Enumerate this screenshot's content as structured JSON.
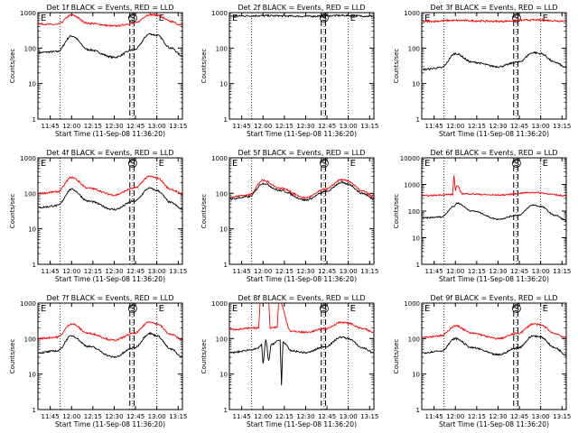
{
  "figure": {
    "xlabel": "Start Time (11-Sep-08 11:36:20)",
    "ylabel": "Counts/sec"
  },
  "chart_data": [
    {
      "type": "line",
      "title": "Det 1f BLACK = Events, RED = LLD",
      "y_log_range": [
        1,
        1000
      ],
      "yticks": [
        "1",
        "10",
        "100",
        "1000"
      ],
      "xticks": [
        "11:45",
        "12:00",
        "12:15",
        "12:30",
        "12:45",
        "13:00",
        "13:15"
      ],
      "time_range": [
        "11:36:20",
        "13:18:00"
      ],
      "markers": [
        {
          "label": "E",
          "time": "11:37"
        },
        {
          "label": "S",
          "time": "12:43"
        },
        {
          "label": "E",
          "time": "13:00"
        }
      ],
      "dotted_lines": [
        "11:52",
        "12:43",
        "13:00"
      ],
      "dashed_lines": [
        "12:41",
        "12:44"
      ],
      "series": [
        {
          "name": "Events",
          "color": "#000000",
          "x": [
            "11:37",
            "11:50",
            "12:00",
            "12:12",
            "12:30",
            "12:44",
            "12:55",
            "13:00",
            "13:10",
            "13:18"
          ],
          "y": [
            75,
            80,
            220,
            90,
            55,
            90,
            250,
            230,
            100,
            60
          ]
        },
        {
          "name": "LLD",
          "color": "#ff0000",
          "x": [
            "11:37",
            "11:50",
            "12:00",
            "12:12",
            "12:30",
            "12:44",
            "12:55",
            "13:00",
            "13:10",
            "13:18"
          ],
          "y": [
            480,
            460,
            850,
            500,
            420,
            500,
            880,
            850,
            560,
            430
          ]
        }
      ]
    },
    {
      "type": "line",
      "title": "Det 2f BLACK = Events, RED = LLD",
      "y_log_range": [
        1,
        1000
      ],
      "yticks": [
        "1",
        "10",
        "100",
        "1000"
      ],
      "xticks": [
        "11:45",
        "12:00",
        "12:15",
        "12:30",
        "12:45",
        "13:00",
        "13:15"
      ],
      "time_range": [
        "11:36:20",
        "13:18:00"
      ],
      "markers": [
        {
          "label": "E",
          "time": "11:37"
        },
        {
          "label": "S",
          "time": "12:43"
        },
        {
          "label": "E",
          "time": "13:00"
        }
      ],
      "dotted_lines": [
        "11:52",
        "12:43",
        "13:00"
      ],
      "dashed_lines": [
        "12:41",
        "12:44"
      ],
      "series": [
        {
          "name": "Events",
          "color": "#000000",
          "x": [
            "11:37",
            "12:00",
            "12:30",
            "12:55",
            "13:18"
          ],
          "y": [
            800,
            820,
            790,
            830,
            790
          ]
        },
        {
          "name": "LLD",
          "color": "#ff0000",
          "x": [
            "11:37",
            "12:00",
            "12:30",
            "12:55",
            "13:18"
          ],
          "y": [
            1050,
            1150,
            1080,
            1200,
            1080
          ]
        }
      ]
    },
    {
      "type": "line",
      "title": "Det 3f BLACK = Events, RED = LLD",
      "y_log_range": [
        1,
        1000
      ],
      "yticks": [
        "1",
        "10",
        "100",
        "1000"
      ],
      "xticks": [
        "11:45",
        "12:00",
        "12:15",
        "12:30",
        "12:45",
        "13:00",
        "13:15"
      ],
      "time_range": [
        "11:36:20",
        "13:18:00"
      ],
      "markers": [
        {
          "label": "E",
          "time": "11:37"
        },
        {
          "label": "S",
          "time": "12:43"
        },
        {
          "label": "E",
          "time": "13:00"
        }
      ],
      "dotted_lines": [
        "11:52",
        "12:43",
        "13:00"
      ],
      "dashed_lines": [
        "12:41",
        "12:44"
      ],
      "series": [
        {
          "name": "Events",
          "color": "#000000",
          "x": [
            "11:37",
            "11:50",
            "12:00",
            "12:12",
            "12:30",
            "12:44",
            "12:55",
            "13:00",
            "13:10",
            "13:18"
          ],
          "y": [
            25,
            28,
            70,
            40,
            30,
            40,
            75,
            70,
            40,
            28
          ]
        },
        {
          "name": "LLD",
          "color": "#ff0000",
          "x": [
            "11:37",
            "12:00",
            "12:30",
            "12:55",
            "13:18"
          ],
          "y": [
            560,
            600,
            570,
            620,
            580
          ]
        }
      ]
    },
    {
      "type": "line",
      "title": "Det 4f BLACK = Events, RED = LLD",
      "y_log_range": [
        1,
        1000
      ],
      "yticks": [
        "1",
        "10",
        "100",
        "1000"
      ],
      "xticks": [
        "11:45",
        "12:00",
        "12:15",
        "12:30",
        "12:45",
        "13:00",
        "13:15"
      ],
      "time_range": [
        "11:36:20",
        "13:18:00"
      ],
      "markers": [
        {
          "label": "E",
          "time": "11:37"
        },
        {
          "label": "S",
          "time": "12:43"
        },
        {
          "label": "E",
          "time": "13:00"
        }
      ],
      "dotted_lines": [
        "11:52",
        "12:43",
        "13:00"
      ],
      "dashed_lines": [
        "12:41",
        "12:44"
      ],
      "series": [
        {
          "name": "Events",
          "color": "#000000",
          "x": [
            "11:37",
            "11:50",
            "12:00",
            "12:12",
            "12:30",
            "12:44",
            "12:55",
            "13:00",
            "13:10",
            "13:18"
          ],
          "y": [
            40,
            45,
            130,
            60,
            35,
            60,
            140,
            120,
            55,
            35
          ]
        },
        {
          "name": "LLD",
          "color": "#ff0000",
          "x": [
            "11:37",
            "11:50",
            "12:00",
            "12:12",
            "12:30",
            "12:44",
            "12:55",
            "13:00",
            "13:10",
            "13:18"
          ],
          "y": [
            100,
            110,
            280,
            140,
            90,
            140,
            300,
            270,
            130,
            95
          ]
        }
      ]
    },
    {
      "type": "line",
      "title": "Det 5f BLACK = Events, RED = LLD",
      "y_log_range": [
        1,
        1000
      ],
      "yticks": [
        "1",
        "10",
        "100",
        "1000"
      ],
      "xticks": [
        "11:45",
        "12:00",
        "12:15",
        "12:30",
        "12:45",
        "13:00",
        "13:15"
      ],
      "time_range": [
        "11:36:20",
        "13:18:00"
      ],
      "markers": [
        {
          "label": "E",
          "time": "11:37"
        },
        {
          "label": "S",
          "time": "12:43"
        },
        {
          "label": "E",
          "time": "13:00"
        }
      ],
      "dotted_lines": [
        "11:52",
        "12:43",
        "13:00"
      ],
      "dashed_lines": [
        "12:41",
        "12:44"
      ],
      "series": [
        {
          "name": "Events",
          "color": "#000000",
          "x": [
            "11:37",
            "11:50",
            "12:00",
            "12:12",
            "12:30",
            "12:44",
            "12:55",
            "13:00",
            "13:10",
            "13:18"
          ],
          "y": [
            70,
            80,
            190,
            120,
            65,
            110,
            200,
            180,
            100,
            70
          ]
        },
        {
          "name": "LLD",
          "color": "#ff0000",
          "x": [
            "11:37",
            "11:50",
            "12:00",
            "12:12",
            "12:30",
            "12:44",
            "12:55",
            "13:00",
            "13:10",
            "13:18"
          ],
          "y": [
            80,
            90,
            230,
            140,
            75,
            130,
            240,
            220,
            115,
            80
          ]
        }
      ]
    },
    {
      "type": "line",
      "title": "Det 6f BLACK = Events, RED = LLD",
      "y_log_range": [
        1,
        10000
      ],
      "yticks": [
        "1",
        "10",
        "100",
        "1000",
        "10000"
      ],
      "xticks": [
        "11:45",
        "12:00",
        "12:15",
        "12:30",
        "12:45",
        "13:00",
        "13:15"
      ],
      "time_range": [
        "11:36:20",
        "13:18:00"
      ],
      "markers": [
        {
          "label": "E",
          "time": "11:37"
        },
        {
          "label": "S",
          "time": "12:43"
        },
        {
          "label": "E",
          "time": "13:00"
        }
      ],
      "dotted_lines": [
        "11:52",
        "12:43",
        "13:00"
      ],
      "dashed_lines": [
        "12:41",
        "12:44"
      ],
      "series": [
        {
          "name": "Events",
          "color": "#000000",
          "x": [
            "11:37",
            "11:50",
            "11:59",
            "12:01",
            "12:12",
            "12:30",
            "12:44",
            "12:55",
            "13:00",
            "13:10",
            "13:18"
          ],
          "y": [
            55,
            60,
            150,
            200,
            100,
            50,
            70,
            170,
            150,
            70,
            45
          ]
        },
        {
          "name": "LLD",
          "color": "#ff0000",
          "x": [
            "11:37",
            "11:58",
            "11:59",
            "12:00",
            "12:01",
            "12:05",
            "12:30",
            "12:55",
            "13:18"
          ],
          "y": [
            380,
            420,
            2200,
            600,
            900,
            450,
            400,
            500,
            380
          ]
        }
      ]
    },
    {
      "type": "line",
      "title": "Det 7f BLACK = Events, RED = LLD",
      "y_log_range": [
        1,
        1000
      ],
      "yticks": [
        "1",
        "10",
        "100",
        "1000"
      ],
      "xticks": [
        "11:45",
        "12:00",
        "12:15",
        "12:30",
        "12:45",
        "13:00",
        "13:15"
      ],
      "time_range": [
        "11:36:20",
        "13:18:00"
      ],
      "markers": [
        {
          "label": "E",
          "time": "11:37"
        },
        {
          "label": "S",
          "time": "12:43"
        },
        {
          "label": "E",
          "time": "13:00"
        }
      ],
      "dotted_lines": [
        "11:52",
        "12:43",
        "13:00"
      ],
      "dashed_lines": [
        "12:41",
        "12:44"
      ],
      "series": [
        {
          "name": "Events",
          "color": "#000000",
          "x": [
            "11:37",
            "11:50",
            "12:00",
            "12:12",
            "12:30",
            "12:44",
            "12:55",
            "13:00",
            "13:10",
            "13:18"
          ],
          "y": [
            40,
            45,
            120,
            60,
            30,
            55,
            140,
            120,
            50,
            30
          ]
        },
        {
          "name": "LLD",
          "color": "#ff0000",
          "x": [
            "11:37",
            "11:50",
            "12:00",
            "12:12",
            "12:30",
            "12:44",
            "12:55",
            "13:00",
            "13:10",
            "13:18"
          ],
          "y": [
            100,
            110,
            260,
            140,
            90,
            140,
            300,
            260,
            130,
            95
          ]
        }
      ]
    },
    {
      "type": "line",
      "title": "Det 8f BLACK = Events, RED = LLD",
      "y_log_range": [
        1,
        1000
      ],
      "yticks": [
        "1",
        "10",
        "100",
        "1000"
      ],
      "xticks": [
        "11:45",
        "12:00",
        "12:15",
        "12:30",
        "12:45",
        "13:00",
        "13:15"
      ],
      "time_range": [
        "11:36:20",
        "13:18:00"
      ],
      "markers": [
        {
          "label": "E",
          "time": "11:37"
        },
        {
          "label": "S",
          "time": "12:43"
        },
        {
          "label": "E",
          "time": "13:00"
        }
      ],
      "dotted_lines": [
        "11:52",
        "12:43",
        "13:00"
      ],
      "dashed_lines": [
        "12:41",
        "12:44"
      ],
      "series": [
        {
          "name": "Events",
          "color": "#000000",
          "x": [
            "11:37",
            "11:55",
            "11:59",
            "12:00",
            "12:02",
            "12:04",
            "12:06",
            "12:12",
            "12:13",
            "12:14",
            "12:20",
            "12:30",
            "12:44",
            "12:55",
            "13:00",
            "13:10",
            "13:18"
          ],
          "y": [
            40,
            50,
            65,
            20,
            90,
            25,
            70,
            90,
            5,
            80,
            45,
            40,
            60,
            110,
            100,
            55,
            40
          ]
        },
        {
          "name": "LLD",
          "color": "#ff0000",
          "x": [
            "11:37",
            "11:57",
            "11:58",
            "12:04",
            "12:05",
            "12:10",
            "12:11",
            "12:20",
            "12:30",
            "12:44",
            "12:55",
            "13:00",
            "13:10",
            "13:18"
          ],
          "y": [
            180,
            200,
            1200,
            1200,
            200,
            210,
            1200,
            160,
            150,
            190,
            290,
            270,
            190,
            150
          ]
        }
      ]
    },
    {
      "type": "line",
      "title": "Det 9f BLACK = Events, RED = LLD",
      "y_log_range": [
        1,
        1000
      ],
      "yticks": [
        "1",
        "10",
        "100",
        "1000"
      ],
      "xticks": [
        "11:45",
        "12:00",
        "12:15",
        "12:30",
        "12:45",
        "13:00",
        "13:15"
      ],
      "time_range": [
        "11:36:20",
        "13:18:00"
      ],
      "markers": [
        {
          "label": "E",
          "time": "11:37"
        },
        {
          "label": "S",
          "time": "12:43"
        },
        {
          "label": "E",
          "time": "13:00"
        }
      ],
      "dotted_lines": [
        "11:52",
        "12:43",
        "13:00"
      ],
      "dashed_lines": [
        "12:41",
        "12:44"
      ],
      "series": [
        {
          "name": "Events",
          "color": "#000000",
          "x": [
            "11:37",
            "11:50",
            "12:00",
            "12:12",
            "12:30",
            "12:44",
            "12:55",
            "13:00",
            "13:10",
            "13:18"
          ],
          "y": [
            40,
            45,
            100,
            55,
            35,
            55,
            120,
            110,
            55,
            35
          ]
        },
        {
          "name": "LLD",
          "color": "#ff0000",
          "x": [
            "11:37",
            "11:50",
            "12:00",
            "12:12",
            "12:30",
            "12:44",
            "12:55",
            "13:00",
            "13:10",
            "13:18"
          ],
          "y": [
            110,
            120,
            230,
            140,
            100,
            140,
            260,
            240,
            140,
            105
          ]
        }
      ]
    }
  ]
}
